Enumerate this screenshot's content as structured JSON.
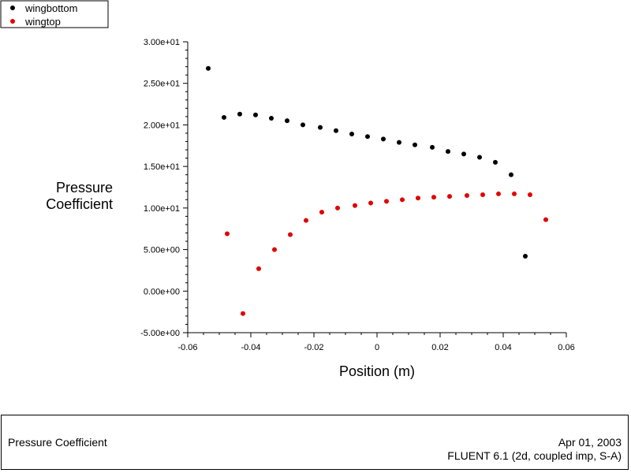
{
  "chart_data": {
    "type": "scatter",
    "ylabel": [
      "Pressure",
      "Coefficient"
    ],
    "xlabel": "Position (m)",
    "xlim": [
      -0.06,
      0.06
    ],
    "ylim": [
      -5,
      30
    ],
    "x_ticks": [
      -0.06,
      -0.04,
      -0.02,
      0,
      0.02,
      0.04,
      0.06
    ],
    "x_tick_labels": [
      "-0.06",
      "-0.04",
      "-0.02",
      "0",
      "0.02",
      "0.04",
      "0.06"
    ],
    "y_ticks": [
      -5,
      0,
      5,
      10,
      15,
      20,
      25,
      30
    ],
    "y_tick_labels": [
      "-5.00e+00",
      "0.00e+00",
      "5.00e+00",
      "1.00e+01",
      "1.50e+01",
      "2.00e+01",
      "2.50e+01",
      "3.00e+01"
    ],
    "legend_position": "top-left",
    "series": [
      {
        "name": "wingbottom",
        "color": "#000000",
        "points": [
          [
            -0.0535,
            26.8
          ],
          [
            -0.0485,
            20.9
          ],
          [
            -0.0435,
            21.3
          ],
          [
            -0.0385,
            21.2
          ],
          [
            -0.0335,
            20.8
          ],
          [
            -0.0285,
            20.5
          ],
          [
            -0.0235,
            20.0
          ],
          [
            -0.018,
            19.7
          ],
          [
            -0.013,
            19.3
          ],
          [
            -0.008,
            18.9
          ],
          [
            -0.003,
            18.6
          ],
          [
            0.002,
            18.3
          ],
          [
            0.007,
            17.9
          ],
          [
            0.012,
            17.6
          ],
          [
            0.0175,
            17.3
          ],
          [
            0.0225,
            16.8
          ],
          [
            0.0275,
            16.5
          ],
          [
            0.0325,
            16.1
          ],
          [
            0.0375,
            15.5
          ],
          [
            0.0425,
            14.0
          ],
          [
            0.047,
            4.2
          ]
        ]
      },
      {
        "name": "wingtop",
        "color": "#e00000",
        "points": [
          [
            -0.0475,
            6.9
          ],
          [
            -0.0425,
            -2.7
          ],
          [
            -0.0375,
            2.7
          ],
          [
            -0.0325,
            5.0
          ],
          [
            -0.0275,
            6.8
          ],
          [
            -0.0225,
            8.5
          ],
          [
            -0.0175,
            9.5
          ],
          [
            -0.0125,
            10.0
          ],
          [
            -0.007,
            10.3
          ],
          [
            -0.002,
            10.6
          ],
          [
            0.003,
            10.8
          ],
          [
            0.008,
            11.0
          ],
          [
            0.013,
            11.2
          ],
          [
            0.018,
            11.3
          ],
          [
            0.023,
            11.4
          ],
          [
            0.0285,
            11.5
          ],
          [
            0.0335,
            11.6
          ],
          [
            0.0385,
            11.7
          ],
          [
            0.0435,
            11.7
          ],
          [
            0.0485,
            11.6
          ],
          [
            0.0535,
            8.6
          ]
        ]
      }
    ]
  },
  "footer": {
    "left_title": "Pressure Coefficient",
    "date": "Apr 01, 2003",
    "software": "FLUENT 6.1 (2d, coupled imp, S-A)"
  }
}
